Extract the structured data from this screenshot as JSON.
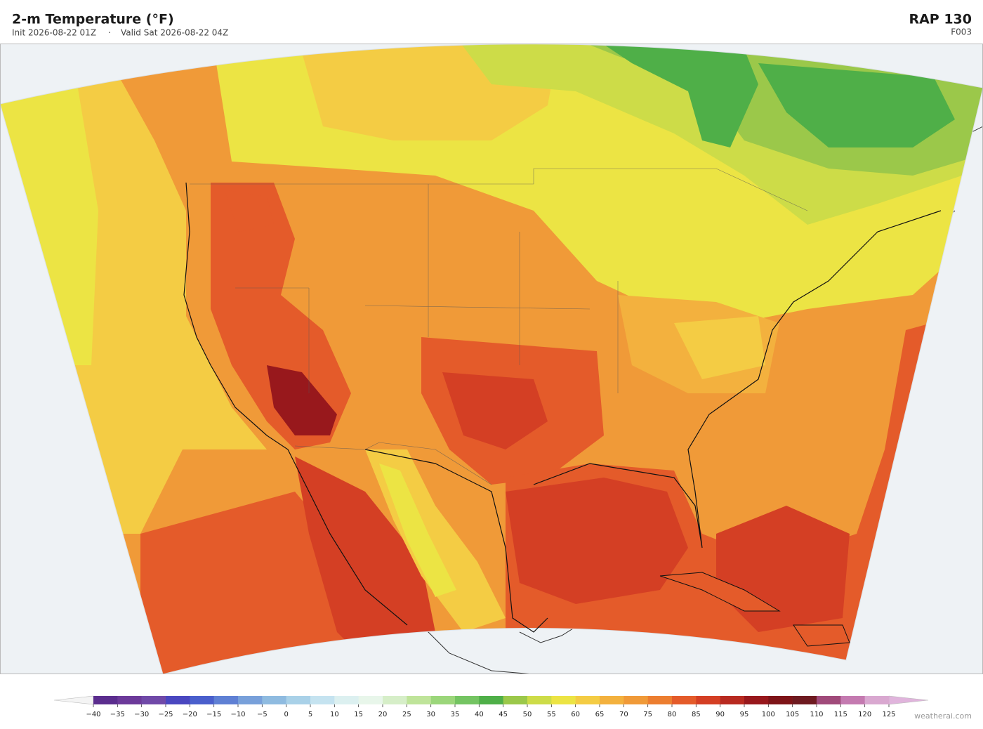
{
  "header": {
    "title": "2-m Temperature  (°F)",
    "init": "Init 2026-08-22 01Z",
    "separator": "·",
    "valid": "Valid Sat 2026-08-22 04Z",
    "model": "RAP  130",
    "forecast_hour": "F003"
  },
  "colorbar": {
    "lim": [
      -40,
      125
    ],
    "ticks": [
      {
        "value": -40,
        "label": "−40"
      },
      {
        "value": -35,
        "label": "−35"
      },
      {
        "value": -30,
        "label": "−30"
      },
      {
        "value": -25,
        "label": "−25"
      },
      {
        "value": -20,
        "label": "−20"
      },
      {
        "value": -15,
        "label": "−15"
      },
      {
        "value": -10,
        "label": "−10"
      },
      {
        "value": -5,
        "label": "−5"
      },
      0,
      5,
      10,
      15,
      20,
      25,
      30,
      35,
      40,
      45,
      50,
      55,
      60,
      65,
      70,
      75,
      80,
      85,
      90,
      95,
      100,
      105,
      110,
      115,
      120,
      125
    ],
    "colors": [
      "#5b2d8e",
      "#6c3a9a",
      "#7049a8",
      "#4a47c0",
      "#4a5fcc",
      "#5f80d4",
      "#78a0da",
      "#8fbbe0",
      "#a9d1e8",
      "#c5e3f0",
      "#dcf0f0",
      "#e8f6ea",
      "#d6eec8",
      "#bfe49a",
      "#9bd67a",
      "#74c462",
      "#4faf48",
      "#9bc84a",
      "#cddc48",
      "#ece444",
      "#f4cc44",
      "#f3b13e",
      "#f09a38",
      "#ec7e30",
      "#e45b2a",
      "#d43f24",
      "#b82a20",
      "#98181c",
      "#7e1418",
      "#6e1a20",
      "#a04a7a",
      "#c47ab0",
      "#d9a8d0"
    ],
    "under_color": "#f4f4f4",
    "over_color": "#e0b4dc"
  },
  "credit": "weatherai.com"
}
